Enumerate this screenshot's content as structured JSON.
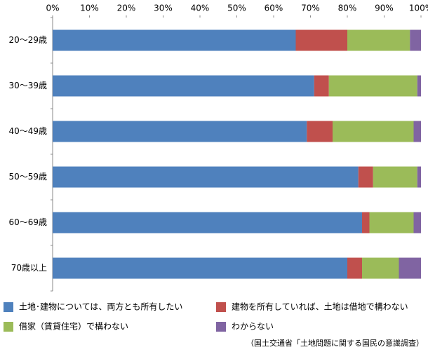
{
  "chart_data": {
    "type": "stacked-bar-horizontal",
    "categories": [
      "20〜29歳",
      "30〜39歳",
      "40〜49歳",
      "50〜59歳",
      "60〜69歳",
      "70歳以上"
    ],
    "series": [
      {
        "name": "土地･建物については、両方とも所有したい",
        "color": "#4f81bd",
        "values": [
          66,
          71,
          69,
          83,
          84,
          80
        ]
      },
      {
        "name": "建物を所有していれば、土地は借地で構わない",
        "color": "#c0504d",
        "values": [
          14,
          4,
          7,
          4,
          2,
          4
        ]
      },
      {
        "name": "借家（賃貸住宅）で構わない",
        "color": "#9bbb59",
        "values": [
          17,
          24,
          22,
          12,
          12,
          10
        ]
      },
      {
        "name": "わからない",
        "color": "#8064a2",
        "values": [
          3,
          1,
          2,
          1,
          2,
          6
        ]
      }
    ],
    "xlim": [
      0,
      100
    ],
    "xticks": [
      {
        "value": 0,
        "label": "0%"
      },
      {
        "value": 10,
        "label": "10%"
      },
      {
        "value": 20,
        "label": "20%"
      },
      {
        "value": 30,
        "label": "30%"
      },
      {
        "value": 40,
        "label": "40%"
      },
      {
        "value": 50,
        "label": "50%"
      },
      {
        "value": 60,
        "label": "60%"
      },
      {
        "value": 70,
        "label": "70%"
      },
      {
        "value": 80,
        "label": "80%"
      },
      {
        "value": 90,
        "label": "90%"
      },
      {
        "value": 100,
        "label": "100%"
      }
    ],
    "source": "（国土交通省「土地問題に関する国民の意識調査）",
    "legend": "bottom"
  }
}
